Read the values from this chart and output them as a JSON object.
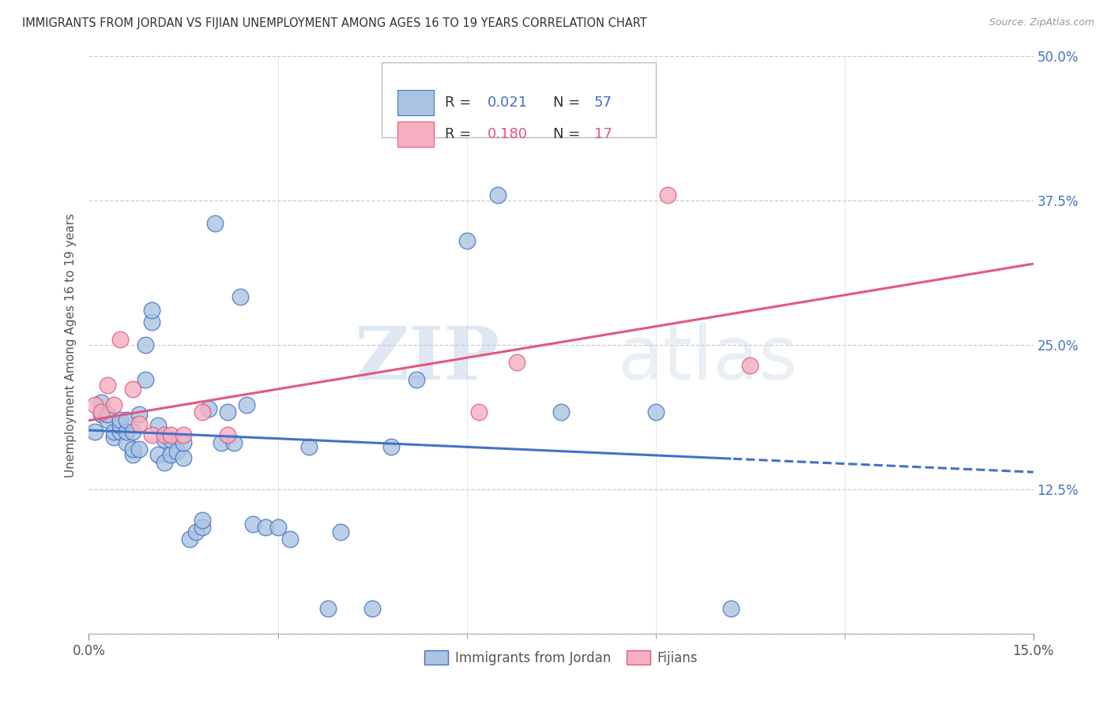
{
  "title": "IMMIGRANTS FROM JORDAN VS FIJIAN UNEMPLOYMENT AMONG AGES 16 TO 19 YEARS CORRELATION CHART",
  "source": "Source: ZipAtlas.com",
  "ylabel": "Unemployment Among Ages 16 to 19 years",
  "xlim": [
    0.0,
    0.15
  ],
  "ylim": [
    0.0,
    0.5
  ],
  "xticks": [
    0.0,
    0.15
  ],
  "xticklabels": [
    "0.0%",
    "15.0%"
  ],
  "yticks": [
    0.0,
    0.125,
    0.25,
    0.375,
    0.5
  ],
  "left_yticklabels": [
    "",
    "",
    "",
    "",
    ""
  ],
  "right_yticklabels": [
    "",
    "12.5%",
    "25.0%",
    "37.5%",
    "50.0%"
  ],
  "legend_r1": "0.021",
  "legend_n1": "57",
  "legend_r2": "0.180",
  "legend_n2": "17",
  "color_jordan": "#aac4e2",
  "color_fijian": "#f5afc0",
  "color_jordan_line": "#4472c4",
  "color_fijian_line": "#e05880",
  "jordan_x": [
    0.001,
    0.002,
    0.002,
    0.003,
    0.003,
    0.004,
    0.004,
    0.005,
    0.005,
    0.005,
    0.006,
    0.006,
    0.006,
    0.007,
    0.007,
    0.007,
    0.008,
    0.008,
    0.009,
    0.009,
    0.01,
    0.01,
    0.011,
    0.011,
    0.012,
    0.012,
    0.013,
    0.013,
    0.014,
    0.015,
    0.015,
    0.016,
    0.017,
    0.018,
    0.018,
    0.019,
    0.02,
    0.021,
    0.022,
    0.023,
    0.024,
    0.025,
    0.026,
    0.028,
    0.03,
    0.032,
    0.035,
    0.038,
    0.04,
    0.045,
    0.048,
    0.052,
    0.06,
    0.065,
    0.075,
    0.09,
    0.102
  ],
  "jordan_y": [
    0.175,
    0.2,
    0.19,
    0.185,
    0.19,
    0.17,
    0.175,
    0.175,
    0.18,
    0.185,
    0.165,
    0.175,
    0.185,
    0.155,
    0.16,
    0.175,
    0.16,
    0.19,
    0.22,
    0.25,
    0.27,
    0.28,
    0.155,
    0.18,
    0.148,
    0.168,
    0.155,
    0.168,
    0.158,
    0.152,
    0.165,
    0.082,
    0.088,
    0.092,
    0.098,
    0.195,
    0.355,
    0.165,
    0.192,
    0.165,
    0.292,
    0.198,
    0.095,
    0.092,
    0.092,
    0.082,
    0.162,
    0.022,
    0.088,
    0.022,
    0.162,
    0.22,
    0.34,
    0.38,
    0.192,
    0.192,
    0.022
  ],
  "fijian_x": [
    0.001,
    0.002,
    0.003,
    0.004,
    0.005,
    0.007,
    0.008,
    0.01,
    0.012,
    0.013,
    0.015,
    0.018,
    0.022,
    0.062,
    0.068,
    0.092,
    0.105
  ],
  "fijian_y": [
    0.198,
    0.192,
    0.215,
    0.198,
    0.255,
    0.212,
    0.182,
    0.172,
    0.172,
    0.172,
    0.172,
    0.192,
    0.172,
    0.192,
    0.235,
    0.38,
    0.232
  ],
  "watermark_zip": "ZIP",
  "watermark_atlas": "atlas",
  "background_color": "#ffffff",
  "grid_color": "#cccccc"
}
